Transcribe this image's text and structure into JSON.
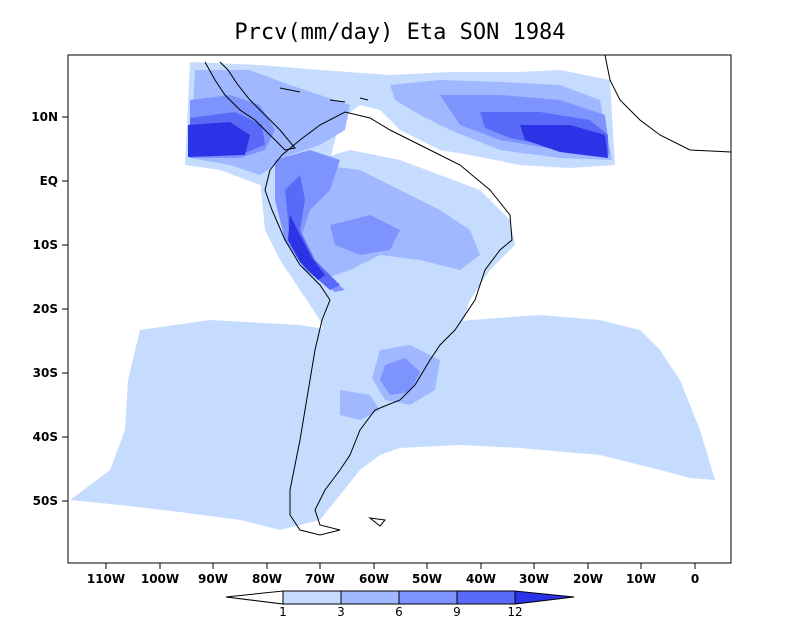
{
  "title": "Prcv(mm/day) Eta SON 1984",
  "map": {
    "lat_ticks": [
      "10N",
      "EQ",
      "10S",
      "20S",
      "30S",
      "40S",
      "50S"
    ],
    "lon_ticks": [
      "110W",
      "100W",
      "90W",
      "80W",
      "70W",
      "60W",
      "50W",
      "40W",
      "30W",
      "20W",
      "10W",
      "0"
    ]
  },
  "colorbar": {
    "levels": [
      "1",
      "3",
      "6",
      "9",
      "12"
    ],
    "colors": [
      "#ffffff",
      "#c6dcff",
      "#a0b8ff",
      "#7d94ff",
      "#5a6af8",
      "#2b33e6"
    ]
  },
  "palette": {
    "c1": "#c6dcff",
    "c2": "#a0b8ff",
    "c3": "#7d94ff",
    "c4": "#5a6af8",
    "c5": "#2b33e6",
    "land": "#000000"
  }
}
